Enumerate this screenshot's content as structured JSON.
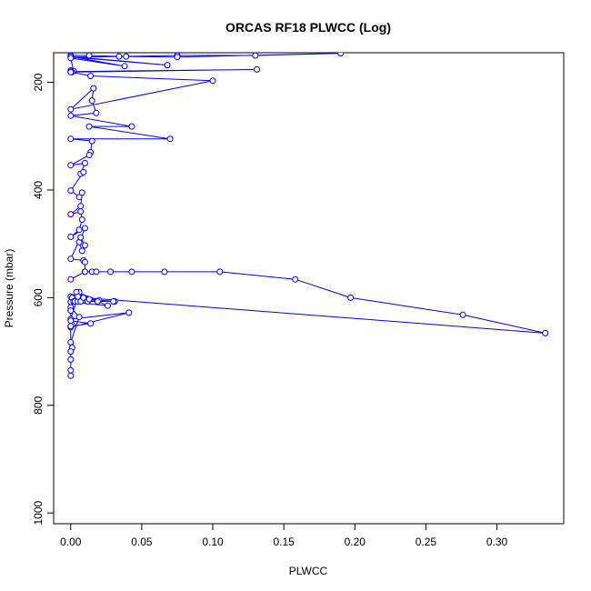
{
  "chart_data": {
    "type": "line",
    "title": "ORCAS RF18 PLWCC (Log)",
    "xlabel": "PLWCC",
    "ylabel": "Pressure (mbar)",
    "xlim": [
      -0.012,
      0.347
    ],
    "ylim": [
      1020,
      145
    ],
    "y_reversed": true,
    "grid": false,
    "x_ticks": [
      0.0,
      0.05,
      0.1,
      0.15,
      0.2,
      0.25,
      0.3
    ],
    "x_tick_labels": [
      "0.00",
      "0.05",
      "0.10",
      "0.15",
      "0.20",
      "0.25",
      "0.30"
    ],
    "y_ticks": [
      200,
      400,
      600,
      800,
      1000
    ],
    "y_tick_labels": [
      "200",
      "400",
      "600",
      "800",
      "1000"
    ],
    "series": [
      {
        "color": "#0000ff",
        "marker": "open-circle",
        "x": [
          0.0,
          0.013,
          0.034,
          0.075,
          0.13,
          0.19,
          0.075,
          0.039,
          0.0,
          0.068,
          0.0,
          0.038,
          0.0,
          0.002,
          0.0,
          0.001,
          0.0,
          0.131,
          0.0,
          0.014,
          0.1,
          0.0,
          0.016,
          0.015,
          0.018,
          0.0,
          0.043,
          0.013,
          0.07,
          0.0,
          0.015,
          0.014,
          0.013,
          0.0,
          0.01,
          0.007,
          0.009,
          0.0,
          0.006,
          0.008,
          0.007,
          0.0,
          0.007,
          0.008,
          0.006,
          0.0,
          0.01,
          0.006,
          0.008,
          0.01,
          0.007,
          0.0,
          0.009,
          0.01,
          0.01,
          0.0,
          0.01,
          0.015,
          0.018,
          0.028,
          0.043,
          0.066,
          0.105,
          0.158,
          0.197,
          0.276,
          0.334,
          0.0,
          0.006,
          0.01,
          0.02,
          0.004,
          0.026,
          0.0,
          0.001,
          0.002,
          0.003,
          0.005,
          0.007,
          0.012,
          0.019,
          0.031,
          0.03,
          0.013,
          0.009,
          0.005,
          0.0,
          0.041,
          0.0,
          0.001,
          0.0,
          0.014,
          0.0,
          0.0,
          0.006,
          0.0,
          0.001,
          0.0,
          0.0,
          0.0,
          0.0,
          0.0
        ],
        "y": [
          150,
          150,
          152,
          150,
          150,
          146,
          153,
          152,
          153,
          168,
          152,
          170,
          155,
          179,
          178,
          181,
          180,
          176,
          181,
          188,
          197,
          250,
          211,
          234,
          257,
          262,
          282,
          282,
          305,
          305,
          309,
          330,
          335,
          354,
          350,
          370,
          367,
          401,
          413,
          405,
          430,
          445,
          440,
          455,
          474,
          487,
          471,
          497,
          513,
          503,
          488,
          528,
          531,
          534,
          552,
          566,
          552,
          552,
          552,
          552,
          552,
          552,
          552,
          566,
          600,
          632,
          666,
          598,
          590,
          605,
          605,
          590,
          615,
          608,
          600,
          607,
          607,
          607,
          607,
          607,
          607,
          607,
          607,
          603,
          600,
          598,
          640,
          628,
          655,
          650,
          653,
          648,
          643,
          618,
          636,
          683,
          693,
          700,
          715,
          735,
          745,
          624
        ]
      }
    ]
  }
}
